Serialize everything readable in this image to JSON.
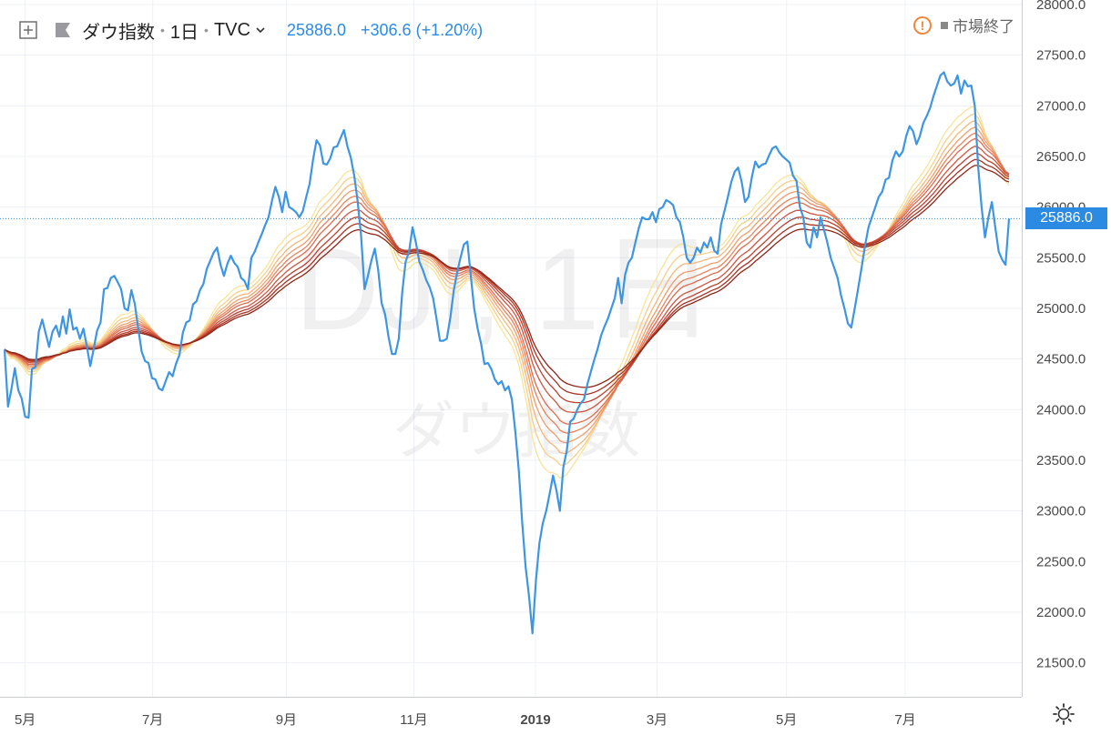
{
  "header": {
    "symbol": "ダウ指数",
    "interval": "1日",
    "exchange": "TVC",
    "last": "25886.0",
    "change": "+306.6 (+1.20%)"
  },
  "status": {
    "text": "市場終了"
  },
  "price_label": "25886.0",
  "watermark": {
    "line1": "DJI, 1日",
    "line2": "ダウ指数"
  },
  "colors": {
    "price": "#3d95e3",
    "ribbon": [
      "#f7e49a",
      "#f6cf8a",
      "#f3b77a",
      "#ef9e6c",
      "#e8845c",
      "#df6b4e",
      "#d05440",
      "#bd4130",
      "#a93322",
      "#8f2617"
    ],
    "grid": "#eef1f6"
  },
  "chart_data": {
    "type": "line",
    "xlabel": "",
    "ylabel": "",
    "ylim": [
      21200,
      28000
    ],
    "x_ticks": [
      "5月",
      "7月",
      "9月",
      "11月",
      "2019",
      "3月",
      "5月",
      "7月"
    ],
    "y_ticks": [
      28000,
      27500,
      27000,
      26500,
      26000,
      25500,
      25000,
      24500,
      24000,
      23500,
      23000,
      22500,
      22000,
      21500
    ],
    "last_price": 25886.0,
    "series": [
      {
        "values": [
          24594,
          24030,
          24200,
          24410,
          24190,
          24110,
          23930,
          23920,
          24400,
          24420,
          24770,
          24890,
          24750,
          24620,
          24770,
          24830,
          24720,
          24920,
          24750,
          24990,
          24790,
          24810,
          24700,
          24800,
          24630,
          24430,
          24600,
          24780,
          24860,
          25190,
          25200,
          25300,
          25320,
          25260,
          25190,
          25000,
          24980,
          25180,
          25040,
          24800,
          24570,
          24480,
          24460,
          24310,
          24300,
          24210,
          24190,
          24280,
          24370,
          24330,
          24450,
          24540,
          24760,
          24860,
          24880,
          25040,
          25070,
          25180,
          25240,
          25390,
          25470,
          25550,
          25600,
          25430,
          25320,
          25440,
          25520,
          25450,
          25410,
          25300,
          25270,
          25190,
          25500,
          25560,
          25650,
          25730,
          25820,
          25900,
          26060,
          26200,
          26100,
          25950,
          26150,
          26000,
          25980,
          25950,
          25900,
          25960,
          26100,
          26230,
          26470,
          26660,
          26610,
          26430,
          26420,
          26480,
          26590,
          26600,
          26680,
          26760,
          26600,
          26490,
          26310,
          26060,
          25720,
          25190,
          25320,
          25470,
          25590,
          25380,
          25050,
          24940,
          24720,
          24550,
          24550,
          24700,
          25160,
          25460,
          25560,
          25800,
          25650,
          25460,
          25380,
          25280,
          25210,
          25100,
          24900,
          24680,
          24680,
          24700,
          24900,
          25170,
          25350,
          25500,
          25630,
          25660,
          25320,
          25000,
          24800,
          24650,
          24450,
          24460,
          24400,
          24300,
          24250,
          24280,
          24190,
          24230,
          24100,
          23780,
          23400,
          22890,
          22445,
          22150,
          21790,
          22310,
          22680,
          22875,
          23000,
          23170,
          23350,
          23200,
          23000,
          23430,
          23595,
          23880,
          23910,
          23995,
          24060,
          24100,
          24250,
          24370,
          24490,
          24600,
          24730,
          24820,
          24900,
          25000,
          25100,
          25300,
          25050,
          25330,
          25450,
          25500,
          25650,
          25790,
          25900,
          25880,
          25880,
          25950,
          25850,
          25980,
          26000,
          26070,
          26050,
          26020,
          25900,
          25850,
          25700,
          25500,
          25450,
          25500,
          25600,
          25550,
          25650,
          25600,
          25700,
          25570,
          25540,
          25830,
          25960,
          26100,
          26250,
          26350,
          26390,
          26250,
          26050,
          26100,
          26300,
          26450,
          26390,
          26420,
          26430,
          26510,
          26580,
          26600,
          26540,
          26500,
          26470,
          26440,
          26310,
          26260,
          26000,
          25900,
          25650,
          25600,
          25800,
          25700,
          25900,
          25780,
          25650,
          25500,
          25400,
          25300,
          25130,
          25000,
          24850,
          24810,
          25000,
          25200,
          25400,
          25620,
          25800,
          25900,
          26000,
          26100,
          26150,
          26270,
          26290,
          26460,
          26550,
          26500,
          26550,
          26700,
          26800,
          26750,
          26620,
          26700,
          26830,
          26900,
          26980,
          27100,
          27200,
          27300,
          27332,
          27240,
          27200,
          27220,
          27300,
          27120,
          27250,
          27192,
          27200,
          27000,
          26400,
          26000,
          25700,
          25900,
          26050,
          25800,
          25560,
          25480,
          25430,
          25886
        ]
      }
    ]
  }
}
